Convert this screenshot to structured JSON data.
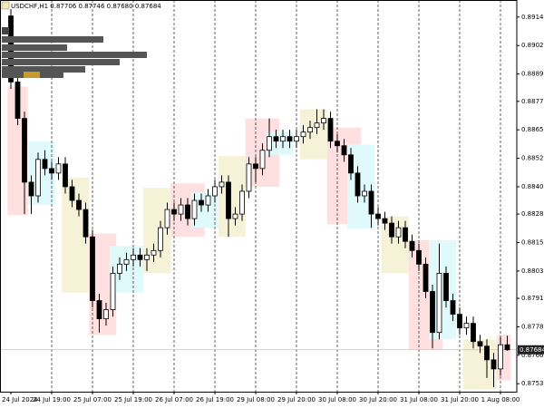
{
  "chart_data": {
    "type": "candlestick",
    "title": "USDCHF,H1  0.87706 0.87746 0.87680 0.87684",
    "categories": [
      "24 Jul 2024",
      null,
      null,
      null,
      null,
      null,
      "24 Jul 19:00",
      null,
      null,
      null,
      null,
      null,
      "25 Jul 07:00",
      null,
      null,
      null,
      null,
      null,
      "25 Jul 19:00",
      null,
      null,
      null,
      null,
      null,
      "26 Jul 07:00",
      null,
      null,
      null,
      null,
      null,
      "26 Jul 19:00",
      null,
      null,
      null,
      null,
      null,
      "29 Jul 08:00",
      null,
      null,
      null,
      null,
      null,
      "29 Jul 20:00",
      null,
      null,
      null,
      null,
      null,
      "30 Jul 08:00",
      null,
      null,
      null,
      null,
      null,
      "30 Jul 20:00",
      null,
      null,
      null,
      null,
      null,
      "31 Jul 08:00",
      null,
      null,
      null,
      null,
      null,
      "31 Jul 20:00",
      null,
      null,
      null,
      null,
      null,
      "1 Aug 08:00",
      null
    ],
    "open": [
      0.8915,
      0.8886,
      0.887,
      0.8842,
      0.8836,
      0.8852,
      0.8848,
      0.8846,
      0.885,
      0.884,
      0.8834,
      0.883,
      0.8818,
      0.879,
      0.8782,
      0.8786,
      0.8802,
      0.8806,
      0.8808,
      0.881,
      0.8808,
      0.881,
      0.8812,
      0.8822,
      0.883,
      0.8828,
      0.8832,
      0.8826,
      0.8834,
      0.8832,
      0.8836,
      0.884,
      0.8842,
      0.8826,
      0.8828,
      0.8838,
      0.885,
      0.8848,
      0.8856,
      0.8862,
      0.886,
      0.8862,
      0.886,
      0.8862,
      0.8864,
      0.8866,
      0.8868,
      0.887,
      0.886,
      0.8858,
      0.8854,
      0.8846,
      0.8836,
      0.8838,
      0.8828,
      0.8826,
      0.8824,
      0.8818,
      0.8822,
      0.8816,
      0.8812,
      0.8806,
      0.8794,
      0.8776,
      0.8802,
      0.879,
      0.8784,
      0.8778,
      0.878,
      0.8772,
      0.877,
      0.8764,
      0.876,
      0.87706
    ],
    "high": [
      0.8918,
      0.8889,
      0.8873,
      0.8845,
      0.8855,
      0.8856,
      0.8851,
      0.8853,
      0.8853,
      0.8843,
      0.8837,
      0.8833,
      0.8821,
      0.8793,
      0.8789,
      0.8805,
      0.8809,
      0.8811,
      0.8813,
      0.8813,
      0.8813,
      0.8815,
      0.8825,
      0.8833,
      0.8833,
      0.8835,
      0.8835,
      0.8837,
      0.8837,
      0.8839,
      0.8843,
      0.8845,
      0.8845,
      0.8831,
      0.8841,
      0.8853,
      0.8853,
      0.8859,
      0.887,
      0.8865,
      0.8865,
      0.8865,
      0.8865,
      0.8867,
      0.8869,
      0.8874,
      0.8874,
      0.8873,
      0.8863,
      0.8861,
      0.8857,
      0.8849,
      0.8841,
      0.8841,
      0.8831,
      0.8829,
      0.8827,
      0.8825,
      0.8825,
      0.8819,
      0.8815,
      0.8809,
      0.8797,
      0.8815,
      0.8805,
      0.8793,
      0.8787,
      0.8783,
      0.8783,
      0.8775,
      0.8773,
      0.8767,
      0.8774,
      0.87746
    ],
    "low": [
      0.8883,
      0.8867,
      0.8828,
      0.8828,
      0.8833,
      0.8845,
      0.8843,
      0.8843,
      0.8837,
      0.8831,
      0.8827,
      0.8815,
      0.8787,
      0.8776,
      0.8779,
      0.8783,
      0.8799,
      0.8803,
      0.8805,
      0.8805,
      0.8803,
      0.8807,
      0.8809,
      0.8819,
      0.8825,
      0.8825,
      0.8823,
      0.8823,
      0.8829,
      0.8829,
      0.8833,
      0.8837,
      0.8818,
      0.8823,
      0.8825,
      0.8835,
      0.8842,
      0.8845,
      0.8853,
      0.8857,
      0.8857,
      0.8857,
      0.8857,
      0.8859,
      0.8861,
      0.8863,
      0.8865,
      0.8857,
      0.8855,
      0.8851,
      0.8843,
      0.8833,
      0.8833,
      0.8822,
      0.8823,
      0.8821,
      0.8815,
      0.8815,
      0.8813,
      0.8809,
      0.8803,
      0.8791,
      0.8769,
      0.8773,
      0.8787,
      0.8781,
      0.8775,
      0.8775,
      0.8769,
      0.8767,
      0.8756,
      0.8752,
      0.8757,
      0.8768
    ],
    "close": [
      0.8886,
      0.887,
      0.8842,
      0.8836,
      0.8852,
      0.8848,
      0.8846,
      0.885,
      0.884,
      0.8834,
      0.883,
      0.8818,
      0.879,
      0.8782,
      0.8786,
      0.8802,
      0.8806,
      0.8808,
      0.881,
      0.8808,
      0.881,
      0.8812,
      0.8822,
      0.883,
      0.8828,
      0.8832,
      0.8826,
      0.8834,
      0.8832,
      0.8836,
      0.884,
      0.8842,
      0.8826,
      0.8828,
      0.8838,
      0.885,
      0.8848,
      0.8856,
      0.8862,
      0.886,
      0.8862,
      0.886,
      0.8862,
      0.8864,
      0.8866,
      0.8868,
      0.887,
      0.886,
      0.8858,
      0.8854,
      0.8846,
      0.8836,
      0.8838,
      0.8828,
      0.8826,
      0.8824,
      0.8818,
      0.8822,
      0.8816,
      0.8812,
      0.8806,
      0.8794,
      0.8776,
      0.8802,
      0.879,
      0.8784,
      0.8778,
      0.878,
      0.8772,
      0.877,
      0.8764,
      0.876,
      0.87706,
      0.87684
    ],
    "up_color": "#ffffff",
    "down_color": "#000000",
    "wick_color": "#000000",
    "zones": [
      {
        "color": "#ffe0e0",
        "start": 0,
        "end": 2,
        "high": 0.8884,
        "low": 0.88275
      },
      {
        "color": "#e0fafc",
        "start": 3,
        "end": 6,
        "high": 0.886,
        "low": 0.8832
      },
      {
        "color": "#f5f2d8",
        "start": 8,
        "end": 11,
        "high": 0.8844,
        "low": 0.87935
      },
      {
        "color": "#ffe0e0",
        "start": 12,
        "end": 15,
        "high": 0.88195,
        "low": 0.8775
      },
      {
        "color": "#e0fafc",
        "start": 15,
        "end": 19,
        "high": 0.8814,
        "low": 0.87935
      },
      {
        "color": "#f5f2d8",
        "start": 20,
        "end": 23,
        "high": 0.88395,
        "low": 0.8802
      },
      {
        "color": "#ffe0e0",
        "start": 24,
        "end": 28,
        "high": 0.88415,
        "low": 0.8818
      },
      {
        "color": "#e0fafc",
        "start": 27,
        "end": 30,
        "high": 0.88375,
        "low": 0.8822
      },
      {
        "color": "#f5f2d8",
        "start": 31,
        "end": 34,
        "high": 0.88535,
        "low": 0.8818
      },
      {
        "color": "#ffe0e0",
        "start": 35,
        "end": 39,
        "high": 0.887,
        "low": 0.884
      },
      {
        "color": "#e0fafc",
        "start": 38,
        "end": 41,
        "high": 0.8864,
        "low": 0.8854
      },
      {
        "color": "#f5f2d8",
        "start": 43,
        "end": 46,
        "high": 0.8874,
        "low": 0.8852
      },
      {
        "color": "#ffe0e0",
        "start": 47,
        "end": 51,
        "high": 0.8866,
        "low": 0.88235
      },
      {
        "color": "#e0fafc",
        "start": 50,
        "end": 53,
        "high": 0.88585,
        "low": 0.88215
      },
      {
        "color": "#f5f2d8",
        "start": 55,
        "end": 58,
        "high": 0.8827,
        "low": 0.8802
      },
      {
        "color": "#ffe0e0",
        "start": 59,
        "end": 63,
        "high": 0.88165,
        "low": 0.87685
      },
      {
        "color": "#e0fafc",
        "start": 62,
        "end": 65,
        "high": 0.88165,
        "low": 0.8773
      },
      {
        "color": "#f5f2d8",
        "start": 67,
        "end": 71,
        "high": 0.8773,
        "low": 0.8751
      },
      {
        "color": "#ffe0e0",
        "start": 72,
        "end": 73,
        "high": 0.8775,
        "low": 0.8755
      }
    ],
    "ylim": [
      0.875,
      0.8922
    ],
    "yticks": [
      {
        "value": 0.89145,
        "label": "0.89145"
      },
      {
        "value": 0.8902,
        "label": "0.89020"
      },
      {
        "value": 0.88895,
        "label": "0.88895"
      },
      {
        "value": 0.88775,
        "label": "0.88775"
      },
      {
        "value": 0.8865,
        "label": "0.88650"
      },
      {
        "value": 0.88525,
        "label": "0.88525"
      },
      {
        "value": 0.884,
        "label": "0.88400"
      },
      {
        "value": 0.8828,
        "label": "0.88280"
      },
      {
        "value": 0.88155,
        "label": "0.88155"
      },
      {
        "value": 0.8803,
        "label": "0.88030"
      },
      {
        "value": 0.8791,
        "label": "0.87910"
      },
      {
        "value": 0.87785,
        "label": "0.87785"
      },
      {
        "value": 0.8766,
        "label": "0.87660"
      },
      {
        "value": 0.87535,
        "label": "0.87535"
      }
    ],
    "last_price": 0.87684,
    "period_separators": true
  }
}
